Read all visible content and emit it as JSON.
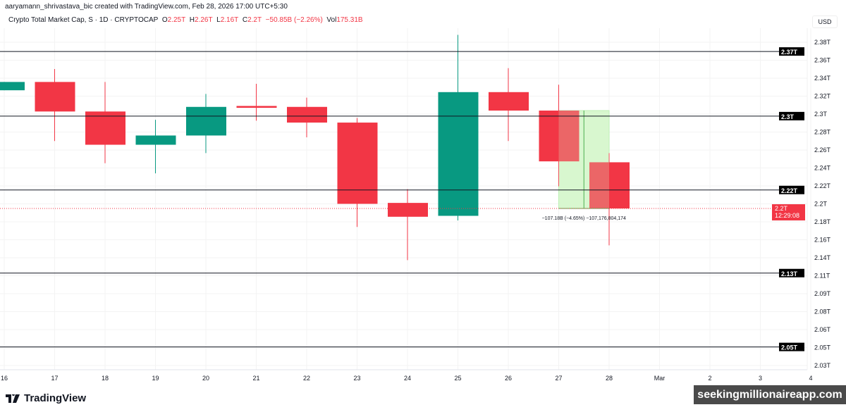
{
  "credit": "aaryamann_shrivastava_bic created with TradingView.com, Feb 28, 2026 17:00 UTC+5:30",
  "legend": {
    "symbol": "Crypto Total Market Cap, S · 1D · CRYPTOCAP",
    "o_label": "O",
    "o": "2.25T",
    "h_label": "H",
    "h": "2.26T",
    "l_label": "L",
    "l": "2.16T",
    "c_label": "C",
    "c": "2.2T",
    "change": "−50.85B (−2.26%)",
    "vol_label": "Vol",
    "vol": "175.31B"
  },
  "currency": "USD",
  "colors": {
    "up": "#089981",
    "down": "#f23645",
    "measure_fill": "#d9f7cf",
    "measure_line": "#4caf50"
  },
  "chart_data": {
    "type": "candlestick",
    "x_tick_labels": [
      "16",
      "17",
      "18",
      "19",
      "20",
      "21",
      "22",
      "23",
      "24",
      "25",
      "26",
      "27",
      "28",
      "Mar",
      "2",
      "3",
      "4"
    ],
    "candles": [
      {
        "date": "16",
        "o": 2.328,
        "h": 2.337,
        "l": 2.328,
        "c": 2.337
      },
      {
        "date": "17",
        "o": 2.337,
        "h": 2.351,
        "l": 2.273,
        "c": 2.305
      },
      {
        "date": "18",
        "o": 2.305,
        "h": 2.337,
        "l": 2.249,
        "c": 2.269
      },
      {
        "date": "19",
        "o": 2.269,
        "h": 2.296,
        "l": 2.238,
        "c": 2.279
      },
      {
        "date": "20",
        "o": 2.279,
        "h": 2.324,
        "l": 2.26,
        "c": 2.31
      },
      {
        "date": "21",
        "o": 2.311,
        "h": 2.335,
        "l": 2.295,
        "c": 2.309
      },
      {
        "date": "22",
        "o": 2.31,
        "h": 2.32,
        "l": 2.277,
        "c": 2.293
      },
      {
        "date": "23",
        "o": 2.293,
        "h": 2.298,
        "l": 2.18,
        "c": 2.205
      },
      {
        "date": "24",
        "o": 2.206,
        "h": 2.221,
        "l": 2.144,
        "c": 2.191
      },
      {
        "date": "25",
        "o": 2.192,
        "h": 2.388,
        "l": 2.187,
        "c": 2.326
      },
      {
        "date": "26",
        "o": 2.326,
        "h": 2.352,
        "l": 2.273,
        "c": 2.306
      },
      {
        "date": "27",
        "o": 2.306,
        "h": 2.334,
        "l": 2.224,
        "c": 2.251
      },
      {
        "date": "28",
        "o": 2.25,
        "h": 2.26,
        "l": 2.16,
        "c": 2.2
      }
    ],
    "y_tick_labels": [
      "2.38T",
      "2.36T",
      "2.34T",
      "2.32T",
      "2.3T",
      "2.28T",
      "2.26T",
      "2.24T",
      "2.22T",
      "2.2T",
      "2.18T",
      "2.16T",
      "2.14T",
      "2.11T",
      "2.09T",
      "2.08T",
      "2.06T",
      "2.05T",
      "2.03T"
    ],
    "horizontal_lines": [
      {
        "value": 2.37,
        "label": "2.37T"
      },
      {
        "value": 2.3,
        "label": "2.3T"
      },
      {
        "value": 2.22,
        "label": "2.22T"
      },
      {
        "value": 2.13,
        "label": "2.13T"
      },
      {
        "value": 2.05,
        "label": "2.05T"
      }
    ],
    "last_price": {
      "value": 2.2,
      "label": "2.2T",
      "countdown": "12:29:08"
    },
    "measure": {
      "from_date": "27",
      "to_date": "28",
      "from": 2.306,
      "to": 2.2,
      "label": "−107.18B (−4.65%) −107,176,804,174"
    }
  },
  "brand": "TradingView",
  "watermark": "seekingmillionaireapp.com"
}
